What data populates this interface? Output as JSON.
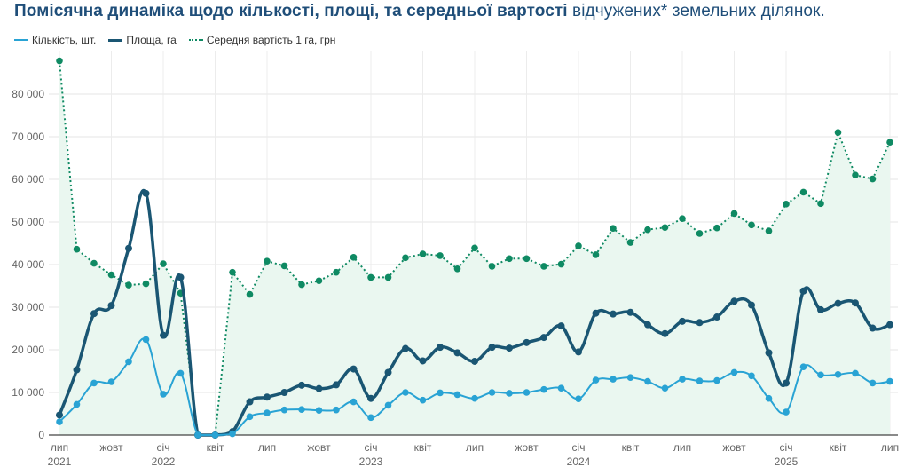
{
  "title": {
    "bold": "Помісячна динаміка щодо кількості, площі, та середньої вартості",
    "regular": " відчужених* земельних ділянок."
  },
  "chart_data": {
    "type": "line",
    "title": "Помісячна динаміка щодо кількості, площі, та середньої вартості відчужених* земельних ділянок.",
    "x_start": "2021-07",
    "x_end": "2025-07",
    "x_ticks": [
      {
        "month": 0,
        "label": "лип",
        "year": "2021"
      },
      {
        "month": 3,
        "label": "жовт"
      },
      {
        "month": 6,
        "label": "січ",
        "year": "2022"
      },
      {
        "month": 9,
        "label": "квіт"
      },
      {
        "month": 12,
        "label": "лип"
      },
      {
        "month": 15,
        "label": "жовт"
      },
      {
        "month": 18,
        "label": "січ",
        "year": "2023"
      },
      {
        "month": 21,
        "label": "квіт"
      },
      {
        "month": 24,
        "label": "лип"
      },
      {
        "month": 27,
        "label": "жовт"
      },
      {
        "month": 30,
        "label": "січ",
        "year": "2024"
      },
      {
        "month": 33,
        "label": "квіт"
      },
      {
        "month": 36,
        "label": "лип"
      },
      {
        "month": 39,
        "label": "жовт"
      },
      {
        "month": 42,
        "label": "січ",
        "year": "2025"
      },
      {
        "month": 45,
        "label": "квіт"
      },
      {
        "month": 48,
        "label": "лип"
      }
    ],
    "y_ticks": [
      "0",
      "10 000",
      "20 000",
      "30 000",
      "40 000",
      "50 000",
      "60 000",
      "70 000",
      "80 000"
    ],
    "ylim": [
      0,
      90000
    ],
    "grid": true,
    "legend_position": "top-left",
    "series": [
      {
        "name": "Кількість, шт.",
        "color": "#29a3d4",
        "style": "solid",
        "values": [
          3100,
          7200,
          12200,
          12500,
          17200,
          22400,
          9600,
          14500,
          0,
          0,
          300,
          4300,
          5200,
          5900,
          6000,
          5800,
          5900,
          7800,
          4100,
          7000,
          10000,
          8200,
          9900,
          9500,
          8600,
          10000,
          9800,
          10000,
          10700,
          11000,
          8500,
          12900,
          13100,
          13500,
          12600,
          11000,
          13100,
          12700,
          12800,
          14700,
          13900,
          8600,
          5400,
          16000,
          14100,
          14200,
          14500,
          12200,
          12600
        ]
      },
      {
        "name": "Площа, га",
        "color": "#1a5673",
        "style": "solid-thick",
        "values": [
          4700,
          15300,
          28500,
          30400,
          43800,
          56700,
          23400,
          37000,
          0,
          0,
          800,
          7800,
          8900,
          10000,
          11700,
          10900,
          11800,
          15500,
          8600,
          14700,
          20300,
          17400,
          20600,
          19300,
          17300,
          20600,
          20400,
          21700,
          22900,
          25600,
          19500,
          28600,
          28400,
          28800,
          25900,
          23800,
          26700,
          26400,
          27700,
          31400,
          30500,
          19300,
          12200,
          33800,
          29400,
          30900,
          31000,
          25100,
          25900
        ]
      },
      {
        "name": "Середня вартість 1 га, грн",
        "color": "#0f8a63",
        "style": "dotted-area",
        "values": [
          87800,
          43600,
          40300,
          37600,
          35200,
          35500,
          40200,
          33300,
          0,
          0,
          38200,
          33000,
          40800,
          39700,
          35300,
          36200,
          38200,
          41700,
          37000,
          37000,
          41600,
          42500,
          42100,
          39000,
          43900,
          39600,
          41400,
          41400,
          39600,
          40100,
          44400,
          42300,
          48500,
          45200,
          48200,
          48700,
          50800,
          47300,
          48600,
          52000,
          49300,
          47900,
          54200,
          57000,
          54300,
          71000,
          61000,
          60100,
          68700
        ]
      }
    ]
  }
}
